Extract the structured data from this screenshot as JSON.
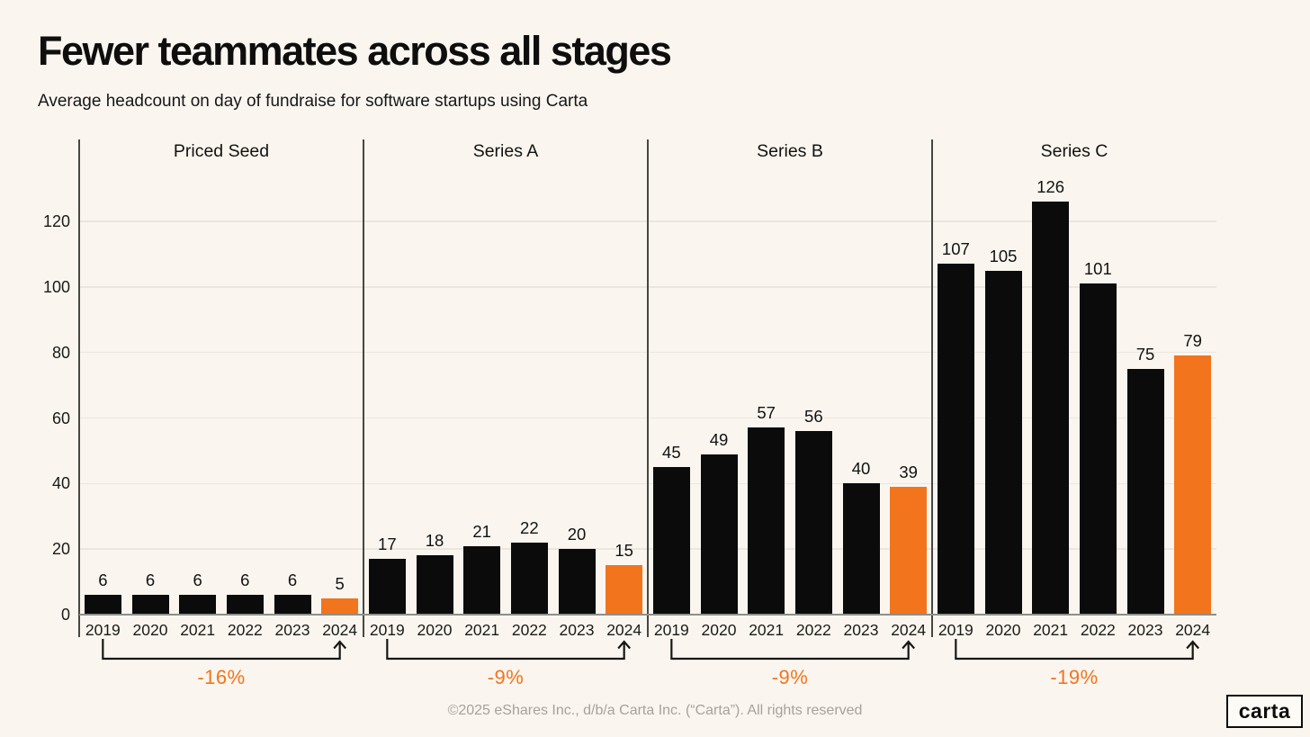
{
  "page": {
    "title": "Fewer teammates across all stages",
    "subtitle": "Average headcount on day of fundraise for software startups using Carta",
    "footer": "©2025 eShares Inc., d/b/a Carta Inc. (“Carta”). All rights reserved",
    "logo_text": "carta"
  },
  "colors": {
    "background": "#FAF6EF",
    "bar": "#0B0B0B",
    "highlight": "#F2741D",
    "grid": "#EBE6DE",
    "baseline": "#8E8E8A",
    "axis_line": "#464642",
    "text": "#121212",
    "muted": "#A7A299"
  },
  "chart_data": {
    "type": "bar",
    "title": "Fewer teammates across all stages",
    "subtitle": "Average headcount on day of fundraise for software startups using Carta",
    "categories": [
      "2019",
      "2020",
      "2021",
      "2022",
      "2023",
      "2024"
    ],
    "yticks": [
      0,
      20,
      40,
      60,
      80,
      100,
      120
    ],
    "ylim": [
      0,
      145
    ],
    "grid": true,
    "legend": false,
    "highlight_category": "2024",
    "panels": [
      {
        "label": "Priced Seed",
        "values": [
          6,
          6,
          6,
          6,
          6,
          5
        ],
        "change_label": "-16%"
      },
      {
        "label": "Series A",
        "values": [
          17,
          18,
          21,
          22,
          20,
          15
        ],
        "change_label": "-9%"
      },
      {
        "label": "Series B",
        "values": [
          45,
          49,
          57,
          56,
          40,
          39
        ],
        "change_label": "-9%"
      },
      {
        "label": "Series C",
        "values": [
          107,
          105,
          126,
          101,
          75,
          79
        ],
        "change_label": "-19%"
      }
    ]
  }
}
